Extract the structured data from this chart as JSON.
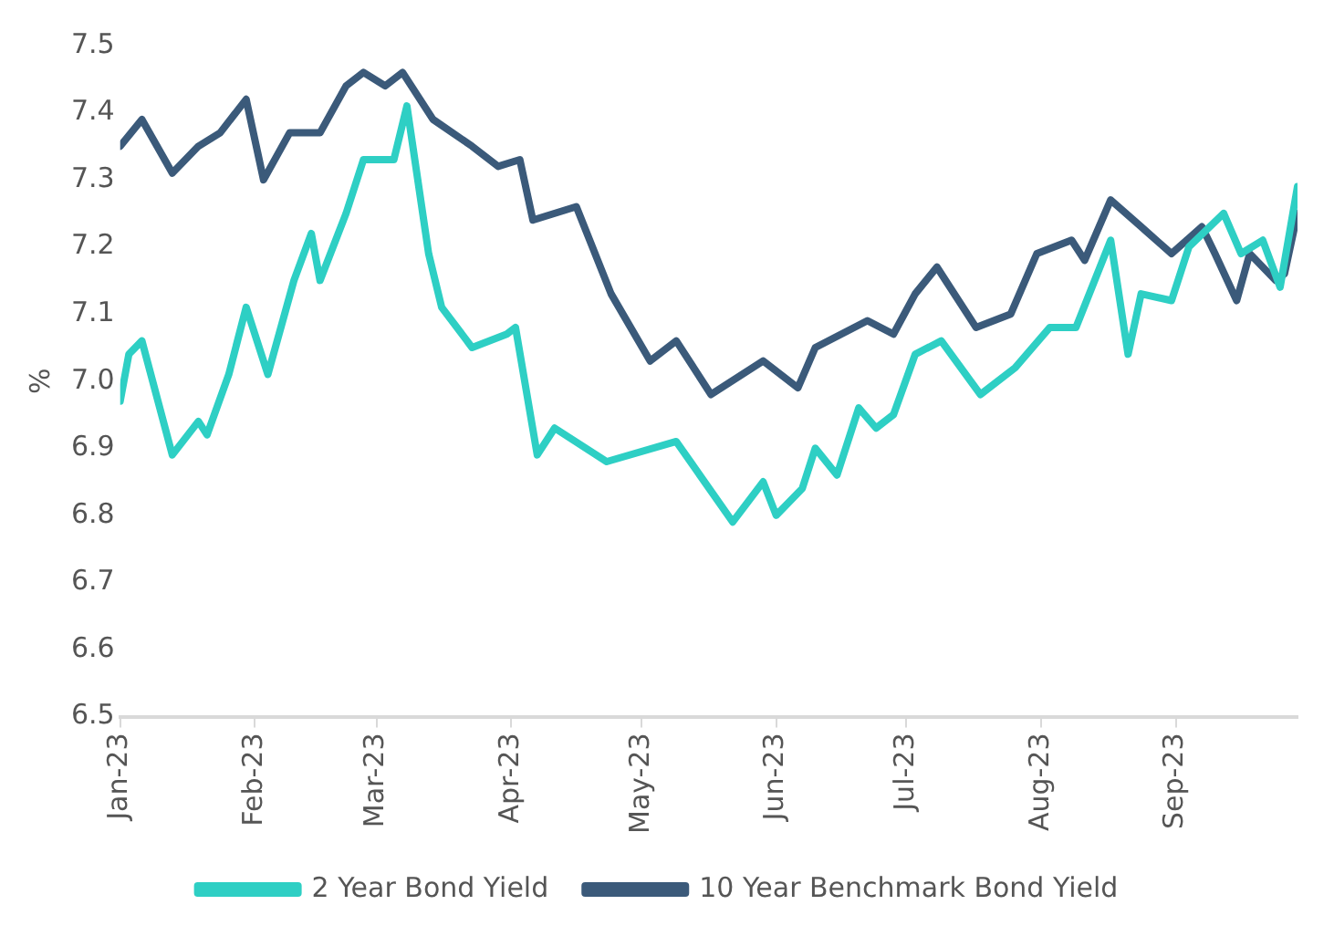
{
  "chart_data": {
    "type": "line",
    "ylabel": "%",
    "ylim": [
      6.5,
      7.5
    ],
    "yticks": [
      6.5,
      6.6,
      6.7,
      6.8,
      6.9,
      {
        "value": 7,
        "label": "7.0"
      },
      7.1,
      7.2,
      7.3,
      7.4,
      7.5
    ],
    "xlim": [
      "2023-01-01",
      "2023-09-29"
    ],
    "xticks": [
      {
        "value": "2023-01-01",
        "label": "Jan-23"
      },
      {
        "value": "2023-02-01",
        "label": "Feb-23"
      },
      {
        "value": "2023-03-01",
        "label": "Mar-23"
      },
      {
        "value": "2023-04-01",
        "label": "Apr-23"
      },
      {
        "value": "2023-05-01",
        "label": "May-23"
      },
      {
        "value": "2023-06-01",
        "label": "Jun-23"
      },
      {
        "value": "2023-07-01",
        "label": "Jul-23"
      },
      {
        "value": "2023-08-01",
        "label": "Aug-23"
      },
      {
        "value": "2023-09-01",
        "label": "Sep-23"
      }
    ],
    "grid": false,
    "legend": "bottom",
    "marker": "none",
    "line_style": "solid",
    "series": [
      {
        "name": "2 Year Bond Yield",
        "color": "#2ecfc4",
        "x": [
          "2023-01-01",
          "2023-01-03",
          "2023-01-06",
          "2023-01-13",
          "2023-01-19",
          "2023-01-21",
          "2023-01-26",
          "2023-01-30",
          "2023-02-04",
          "2023-02-10",
          "2023-02-14",
          "2023-02-16",
          "2023-02-22",
          "2023-02-26",
          "2023-03-05",
          "2023-03-08",
          "2023-03-13",
          "2023-03-16",
          "2023-03-23",
          "2023-03-31",
          "2023-04-02",
          "2023-04-07",
          "2023-04-11",
          "2023-04-23",
          "2023-05-09",
          "2023-05-22",
          "2023-05-29",
          "2023-06-01",
          "2023-06-07",
          "2023-06-10",
          "2023-06-15",
          "2023-06-20",
          "2023-06-24",
          "2023-06-28",
          "2023-07-03",
          "2023-07-09",
          "2023-07-18",
          "2023-07-26",
          "2023-08-03",
          "2023-08-09",
          "2023-08-17",
          "2023-08-21",
          "2023-08-24",
          "2023-08-31",
          "2023-09-04",
          "2023-09-12",
          "2023-09-16",
          "2023-09-21",
          "2023-09-25",
          "2023-09-29"
        ],
        "values": [
          6.97,
          7.04,
          7.06,
          6.89,
          6.94,
          6.92,
          7.01,
          7.11,
          7.01,
          7.15,
          7.22,
          7.15,
          7.25,
          7.33,
          7.33,
          7.41,
          7.19,
          7.11,
          7.05,
          7.07,
          7.08,
          6.89,
          6.93,
          6.88,
          6.91,
          6.79,
          6.85,
          6.8,
          6.84,
          6.9,
          6.86,
          6.96,
          6.93,
          6.95,
          7.04,
          7.06,
          6.98,
          7.02,
          7.08,
          7.08,
          7.21,
          7.04,
          7.13,
          7.12,
          7.2,
          7.25,
          7.19,
          7.21,
          7.14,
          7.29
        ]
      },
      {
        "name": "10 Year Benchmark Bond Yield",
        "color": "#3b5a7a",
        "x": [
          "2023-01-01",
          "2023-01-06",
          "2023-01-13",
          "2023-01-19",
          "2023-01-24",
          "2023-01-30",
          "2023-02-03",
          "2023-02-09",
          "2023-02-16",
          "2023-02-22",
          "2023-02-26",
          "2023-03-03",
          "2023-03-07",
          "2023-03-14",
          "2023-03-23",
          "2023-03-29",
          "2023-04-03",
          "2023-04-06",
          "2023-04-16",
          "2023-04-24",
          "2023-05-03",
          "2023-05-09",
          "2023-05-17",
          "2023-05-29",
          "2023-06-06",
          "2023-06-10",
          "2023-06-22",
          "2023-06-28",
          "2023-07-03",
          "2023-07-08",
          "2023-07-17",
          "2023-07-25",
          "2023-07-31",
          "2023-08-08",
          "2023-08-11",
          "2023-08-17",
          "2023-08-24",
          "2023-08-31",
          "2023-09-07",
          "2023-09-10",
          "2023-09-15",
          "2023-09-18",
          "2023-09-24",
          "2023-09-26",
          "2023-09-29"
        ],
        "values": [
          7.35,
          7.39,
          7.31,
          7.35,
          7.37,
          7.42,
          7.3,
          7.37,
          7.37,
          7.44,
          7.46,
          7.44,
          7.46,
          7.39,
          7.35,
          7.32,
          7.33,
          7.24,
          7.26,
          7.13,
          7.03,
          7.06,
          6.98,
          7.03,
          6.99,
          7.05,
          7.09,
          7.07,
          7.13,
          7.17,
          7.08,
          7.1,
          7.19,
          7.21,
          7.18,
          7.27,
          7.23,
          7.19,
          7.23,
          7.19,
          7.12,
          7.19,
          7.15,
          7.16,
          7.25
        ]
      }
    ]
  }
}
